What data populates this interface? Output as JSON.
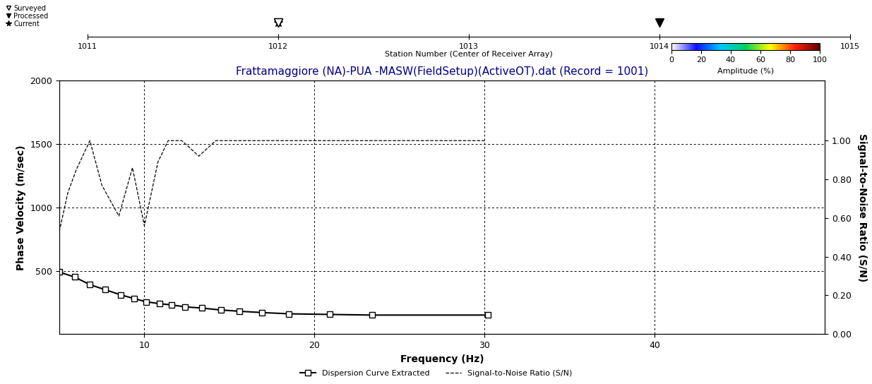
{
  "chart_data": [
    {
      "type": "line",
      "title": "Frattamaggiore (NA)-PUA -MASW(FieldSetup)(ActiveOT).dat (Record = 1001)",
      "x_label": "Frequency (Hz)",
      "y_label": "Phase Velocity (m/sec)",
      "y2_label": "Signal-to-Noise Ratio (S/N)",
      "xlim": [
        5,
        50
      ],
      "xticks": [
        10,
        20,
        30,
        40
      ],
      "ylim": [
        0,
        2000
      ],
      "yticks": [
        500,
        1000,
        1500,
        2000
      ],
      "y2lim": [
        0,
        1.31
      ],
      "y2ticks": [
        {
          "value": 0,
          "label": "0.00"
        },
        {
          "value": 0.2,
          "label": "0.20"
        },
        {
          "value": 0.4,
          "label": "0.40"
        },
        {
          "value": 0.6,
          "label": "0.60"
        },
        {
          "value": 0.8,
          "label": "0.80"
        },
        {
          "value": 1.0,
          "label": "1.00"
        }
      ],
      "grid": true,
      "legend": "lower center",
      "series": [
        {
          "name": "Dispersion Curve Extracted",
          "color": "#000000",
          "marker": "square",
          "line_style": "solid",
          "x": [
            5.0,
            5.9,
            6.8,
            7.7,
            8.6,
            9.4,
            10.1,
            10.9,
            11.6,
            12.4,
            13.4,
            14.5,
            15.6,
            16.9,
            18.5,
            20.9,
            23.4,
            30.2
          ],
          "values": [
            490,
            450,
            390,
            350,
            310,
            280,
            255,
            240,
            230,
            215,
            205,
            190,
            180,
            170,
            160,
            155,
            150,
            150
          ]
        },
        {
          "name": "Signal-to-Noise Ratio (S/N)",
          "color": "#000000",
          "marker": "none",
          "line_style": "dashed",
          "axis": "y2",
          "x": [
            5.0,
            5.5,
            6.0,
            6.8,
            7.5,
            8.5,
            9.3,
            10.0,
            10.8,
            11.4,
            12.2,
            13.2,
            14.2,
            30.0
          ],
          "values": [
            0.53,
            0.73,
            0.85,
            1.0,
            0.77,
            0.61,
            0.86,
            0.56,
            0.89,
            1.0,
            1.0,
            0.92,
            1.0,
            1.0
          ]
        }
      ],
      "colorbar": {
        "label": "Amplitude (%)",
        "range": [
          0,
          100
        ],
        "ticks": [
          0,
          20,
          40,
          60,
          80,
          100
        ]
      }
    },
    {
      "type": "scatter",
      "x_label": "Station Number (Center of Receiver Array)",
      "xlim": [
        1011,
        1015
      ],
      "xticks": [
        1011,
        1012,
        1013,
        1014,
        1015
      ],
      "tick_labels": "x",
      "legend": "upper left",
      "series": [
        {
          "name": "Surveyed",
          "color": "#000000",
          "marker": "triangle_down_open",
          "x": [
            1012
          ]
        },
        {
          "name": "Processed",
          "color": "#000000",
          "marker": "triangle_down",
          "x": [
            1012,
            1014
          ]
        },
        {
          "name": "Current",
          "color": "#000000",
          "marker": "star",
          "x": [
            1012
          ]
        }
      ]
    }
  ]
}
